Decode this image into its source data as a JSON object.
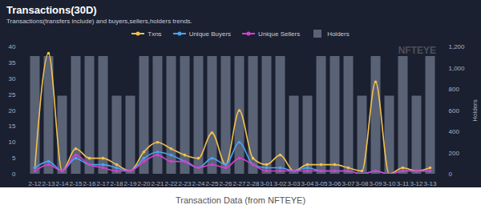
{
  "chart_data": {
    "type": "line",
    "title": "Transactions(30D)",
    "subtitle": "Transactions(transfers include) and buyers,sellers,holders trends.",
    "caption": "Transaction Data (from NFTEYE)",
    "annotations": [
      "NFTEYE"
    ],
    "y2label": "Holders",
    "legend": "top",
    "grid": false,
    "categories": [
      "2-12",
      "2-13",
      "2-14",
      "2-15",
      "2-16",
      "2-17",
      "2-18",
      "2-19",
      "2-20",
      "2-21",
      "2-22",
      "2-23",
      "2-24",
      "2-25",
      "2-26",
      "2-27",
      "2-28",
      "3-01",
      "3-02",
      "3-03",
      "3-04",
      "3-05",
      "3-06",
      "3-07",
      "3-08",
      "3-09",
      "3-10",
      "3-11",
      "3-12",
      "3-13"
    ],
    "series": [
      {
        "name": "Txns",
        "type": "line",
        "color": "#f2c14e",
        "marker": "circle",
        "line_style": "smooth",
        "values": [
          2,
          38,
          1,
          8,
          5,
          5,
          3,
          1,
          7,
          10,
          8,
          6,
          5,
          13,
          3,
          20,
          5,
          3,
          6,
          1,
          3,
          3,
          3,
          2,
          1,
          29,
          0,
          2,
          1,
          2
        ]
      },
      {
        "name": "Unique Buyers",
        "type": "line",
        "color": "#4aa3f0",
        "marker": "circle",
        "line_style": "smooth",
        "values": [
          2,
          4,
          1,
          5,
          3,
          3,
          2,
          1,
          5,
          7,
          6,
          4,
          2,
          5,
          3,
          10,
          3,
          2,
          2,
          1,
          2,
          1,
          1,
          1,
          0,
          1,
          0,
          1,
          1,
          1
        ]
      },
      {
        "name": "Unique Sellers",
        "type": "line",
        "color": "#d63fd0",
        "marker": "circle",
        "line_style": "smooth",
        "values": [
          1,
          3,
          1,
          6,
          3,
          2,
          1,
          1,
          4,
          6,
          4,
          4,
          2,
          3,
          2,
          5,
          3,
          1,
          1,
          1,
          1,
          1,
          1,
          1,
          0,
          1,
          0,
          1,
          1,
          1
        ]
      },
      {
        "name": "Holders",
        "type": "bar",
        "axis": "y2",
        "color": "#5a6275",
        "values": [
          1110,
          1110,
          735,
          1110,
          1110,
          1110,
          735,
          735,
          1110,
          1110,
          1110,
          1110,
          1110,
          1110,
          1110,
          1110,
          1110,
          1110,
          1110,
          735,
          735,
          1110,
          1110,
          1110,
          735,
          1110,
          735,
          1110,
          735,
          1110
        ]
      }
    ],
    "ylim": [
      0,
      40
    ],
    "yticks": [
      0,
      5,
      10,
      15,
      20,
      25,
      30,
      35,
      40
    ],
    "y2lim": [
      0,
      1200
    ],
    "y2ticks": [
      0,
      200,
      400,
      600,
      800,
      {
        "value": 1000,
        "label": "1,000"
      },
      {
        "value": 1200,
        "label": "1,200"
      }
    ]
  }
}
